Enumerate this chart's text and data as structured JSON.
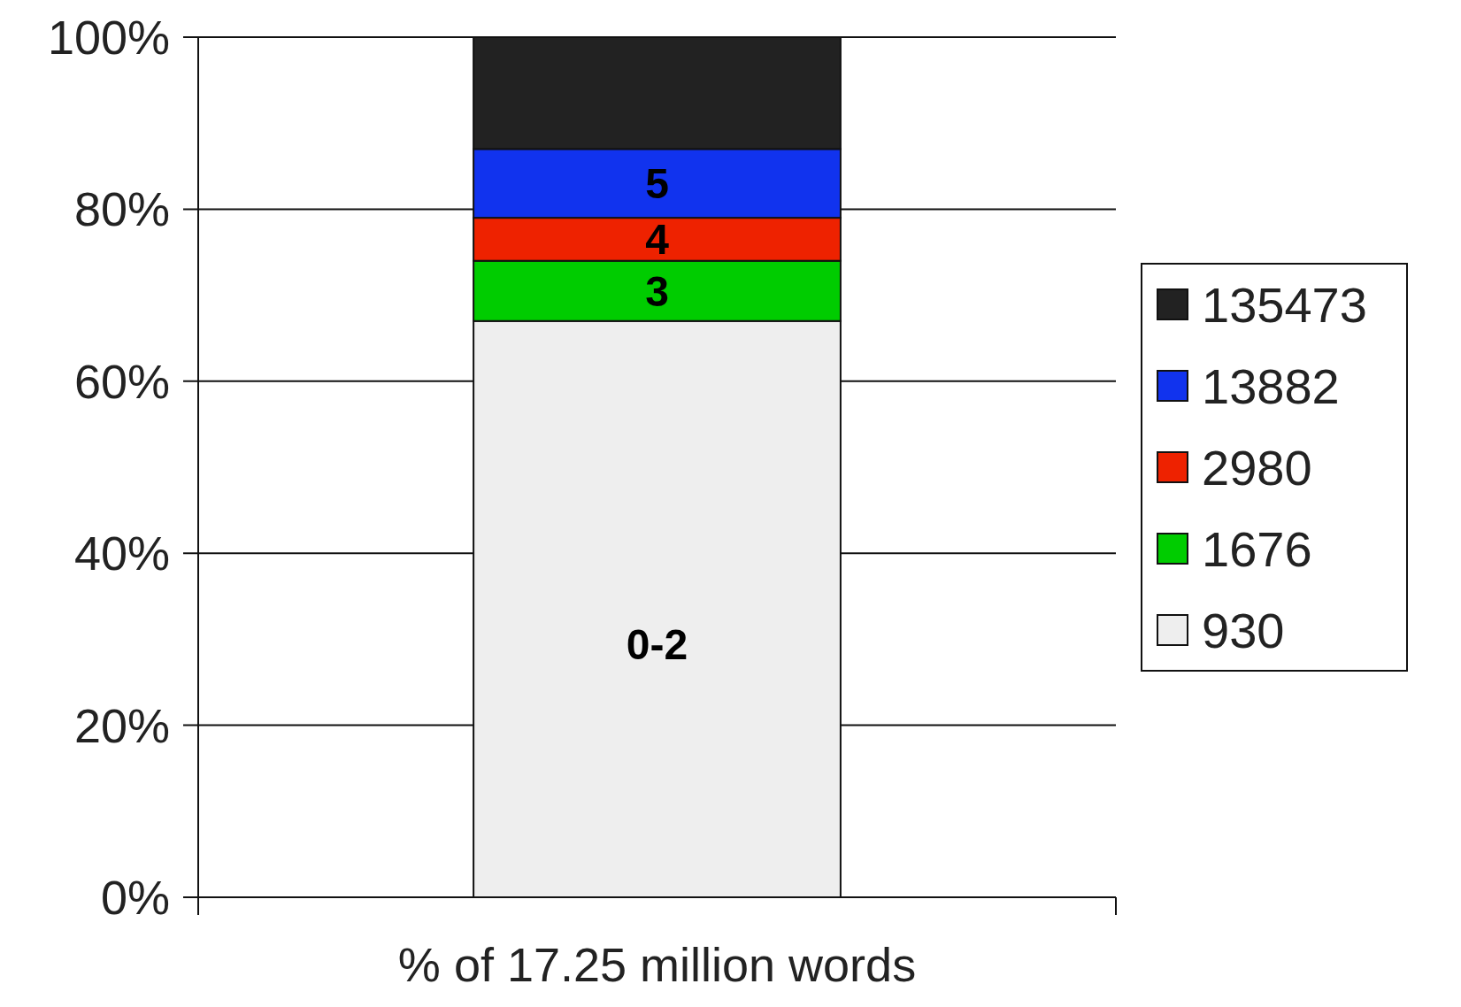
{
  "chart_data": {
    "type": "bar",
    "stacked": true,
    "categories": [
      null
    ],
    "xlabel": "% of 17.25 million words",
    "series": [
      {
        "name": "930",
        "color": "#eeeeee",
        "values": [
          67
        ]
      },
      {
        "name": "1676",
        "color": "#00cc00",
        "values": [
          7
        ]
      },
      {
        "name": "2980",
        "color": "#ee2200",
        "values": [
          5
        ]
      },
      {
        "name": "13882",
        "color": "#1133ee",
        "values": [
          8
        ]
      },
      {
        "name": "135473",
        "color": "#222222",
        "values": [
          13
        ]
      }
    ],
    "ylim": [
      0,
      100
    ],
    "yticks": [
      {
        "value": 0,
        "label": "0%"
      },
      {
        "value": 20,
        "label": "20%"
      },
      {
        "value": 40,
        "label": "40%"
      },
      {
        "value": 60,
        "label": "60%"
      },
      {
        "value": 80,
        "label": "80%"
      },
      {
        "value": 100,
        "label": "100%"
      }
    ],
    "grid": "y",
    "legend": "right",
    "annotations": [
      "0-2",
      "3",
      "4",
      "5"
    ]
  }
}
